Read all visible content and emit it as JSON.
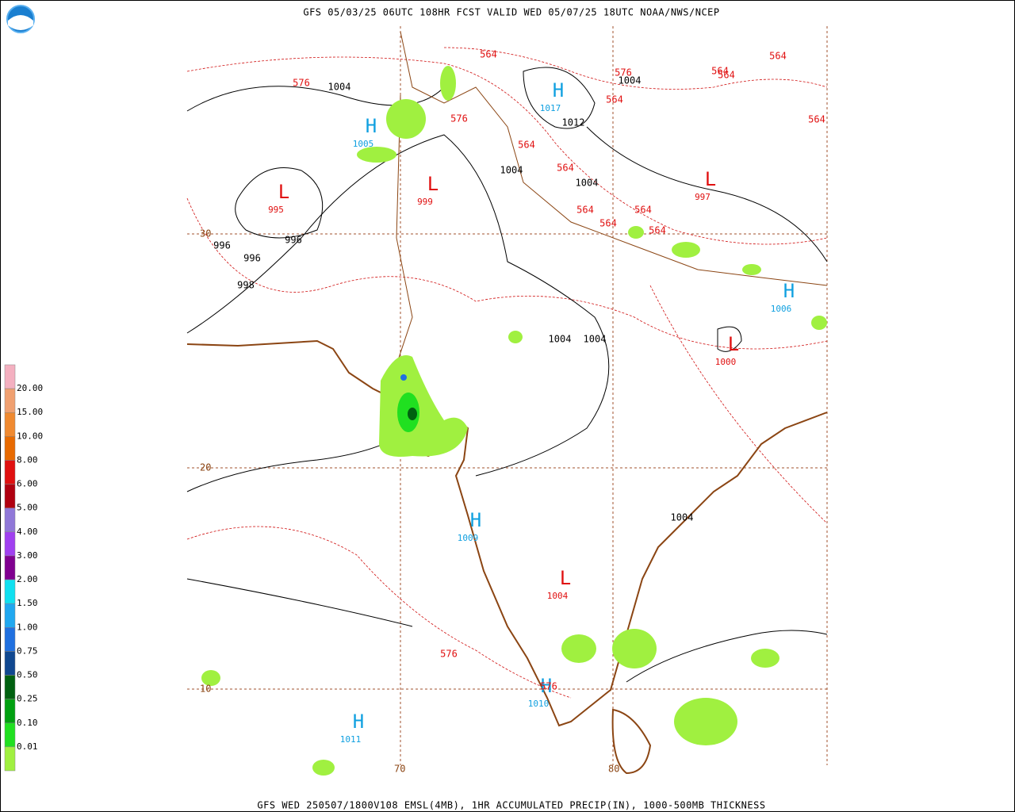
{
  "header": {
    "title": "GFS 05/03/25 06UTC 108HR FCST VALID WED 05/07/25 18UTC NOAA/NWS/NCEP"
  },
  "footer": {
    "text": "GFS WED 250507/1800V108 EMSL(4MB), 1HR ACCUMULATED PRECIP(IN), 1000-500MB THICKNESS"
  },
  "legend": [
    {
      "color": "#f4b0c0"
    },
    {
      "label": "20.00",
      "color": "#f0a070"
    },
    {
      "label": "15.00",
      "color": "#f08a30"
    },
    {
      "label": "10.00",
      "color": "#e86a00"
    },
    {
      "label": "8.00",
      "color": "#e01010"
    },
    {
      "label": "6.00",
      "color": "#b00010"
    },
    {
      "label": "5.00",
      "color": "#9078d8"
    },
    {
      "label": "4.00",
      "color": "#a040f0"
    },
    {
      "label": "3.00",
      "color": "#800090"
    },
    {
      "label": "2.00",
      "color": "#10e0f0"
    },
    {
      "label": "1.50",
      "color": "#20a8f0"
    },
    {
      "label": "1.00",
      "color": "#2070e0"
    },
    {
      "label": "0.75",
      "color": "#104890"
    },
    {
      "label": "0.50",
      "color": "#006010"
    },
    {
      "label": "0.25",
      "color": "#00a010"
    },
    {
      "label": "0.10",
      "color": "#20e020"
    },
    {
      "label": "0.01",
      "color": "#a0f040"
    }
  ],
  "grid_labels": {
    "latitudes": [
      "30",
      "20",
      "10"
    ],
    "longitudes": [
      "70",
      "80"
    ]
  },
  "pressure_centers": [
    {
      "symbol": "H",
      "value": "1005"
    },
    {
      "symbol": "H",
      "value": "1017"
    },
    {
      "symbol": "L",
      "value": "995"
    },
    {
      "symbol": "L",
      "value": "999"
    },
    {
      "symbol": "L",
      "value": "997"
    },
    {
      "symbol": "H",
      "value": "1006"
    },
    {
      "symbol": "L",
      "value": "1000"
    },
    {
      "symbol": "H",
      "value": "1009"
    },
    {
      "symbol": "L",
      "value": "1004"
    },
    {
      "symbol": "H",
      "value": "1010"
    },
    {
      "symbol": "H",
      "value": "1011"
    }
  ],
  "isobar_labels": [
    "1004",
    "1004",
    "1012",
    "1004",
    "1004",
    "996",
    "996",
    "996",
    "998",
    "1004",
    "1004",
    "1004"
  ],
  "thickness_labels": [
    "564",
    "576",
    "576",
    "564",
    "576",
    "564",
    "564",
    "564",
    "564",
    "564",
    "564",
    "564",
    "564",
    "564",
    "564",
    "576",
    "576"
  ]
}
